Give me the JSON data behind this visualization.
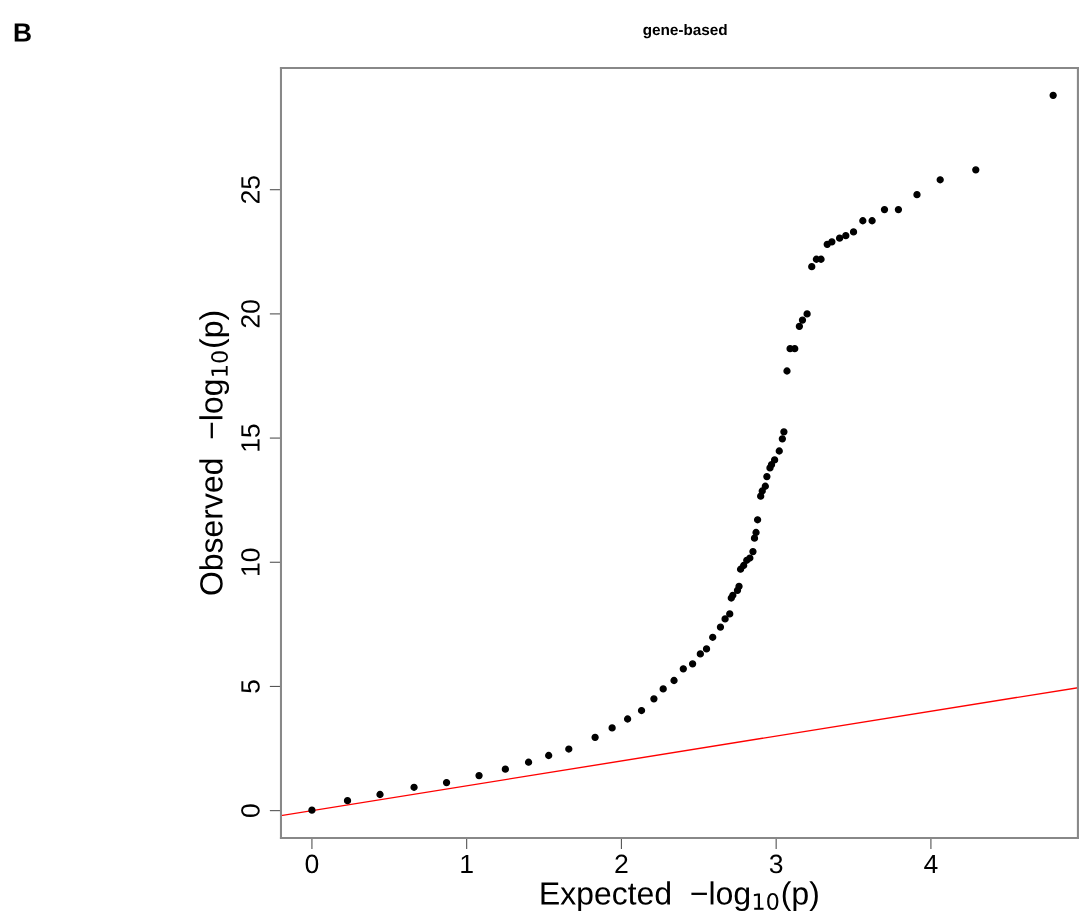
{
  "chart_data": {
    "type": "scatter",
    "title": "gene-based",
    "xlabel": "Expected  −log$_{10}$(p)",
    "ylabel": "Observed  −log$_{10}$(p)",
    "annotations": [
      "B"
    ],
    "xlim": [
      -0.2,
      4.95
    ],
    "ylim": [
      -1.1,
      29.9
    ],
    "xticks": [
      0,
      1,
      2,
      3,
      4
    ],
    "yticks": [
      0,
      5,
      10,
      15,
      20,
      25
    ],
    "grid": false,
    "legend": false,
    "marker": "circle",
    "series": [
      {
        "color": "#000000",
        "x": [
          0,
          0.23,
          0.44,
          0.66,
          0.87,
          1.08,
          1.25,
          1.4,
          1.53,
          1.66,
          1.83,
          1.94,
          2.04,
          2.13,
          2.21,
          2.27,
          2.34,
          2.4,
          2.46,
          2.51,
          2.55,
          2.59,
          2.64,
          2.67,
          2.7,
          2.71,
          2.72,
          2.75,
          2.76,
          2.77,
          2.79,
          2.81,
          2.83,
          2.85,
          2.86,
          2.87,
          2.88,
          2.9,
          2.91,
          2.93,
          2.94,
          2.96,
          2.97,
          2.99,
          3.02,
          3.04,
          3.05,
          3.07,
          3.09,
          3.12,
          3.15,
          3.17,
          3.2,
          3.23,
          3.26,
          3.29,
          3.33,
          3.36,
          3.41,
          3.45,
          3.5,
          3.56,
          3.62,
          3.7,
          3.79,
          3.91,
          4.06,
          4.29,
          4.79
        ],
        "values": [
          0.02,
          0.4,
          0.65,
          0.94,
          1.13,
          1.41,
          1.67,
          1.95,
          2.22,
          2.48,
          2.95,
          3.33,
          3.69,
          4.03,
          4.5,
          4.9,
          5.24,
          5.71,
          5.91,
          6.31,
          6.51,
          6.98,
          7.39,
          7.72,
          7.92,
          8.56,
          8.67,
          8.87,
          9.03,
          9.72,
          9.87,
          10.08,
          10.17,
          10.43,
          10.97,
          11.2,
          11.71,
          12.66,
          12.87,
          13.06,
          13.45,
          13.8,
          13.93,
          14.12,
          14.48,
          14.97,
          15.25,
          17.7,
          18.6,
          18.6,
          19.5,
          19.75,
          20.0,
          21.9,
          22.2,
          22.2,
          22.8,
          22.9,
          23.05,
          23.15,
          23.3,
          23.75,
          23.75,
          24.2,
          24.2,
          24.8,
          25.4,
          25.8,
          28.8
        ]
      },
      {
        "type": "line",
        "color": "#ff0000",
        "line_style": "solid",
        "marker": "none",
        "x": [
          -0.2,
          4.95
        ],
        "values": [
          -0.2,
          4.95
        ]
      }
    ]
  }
}
